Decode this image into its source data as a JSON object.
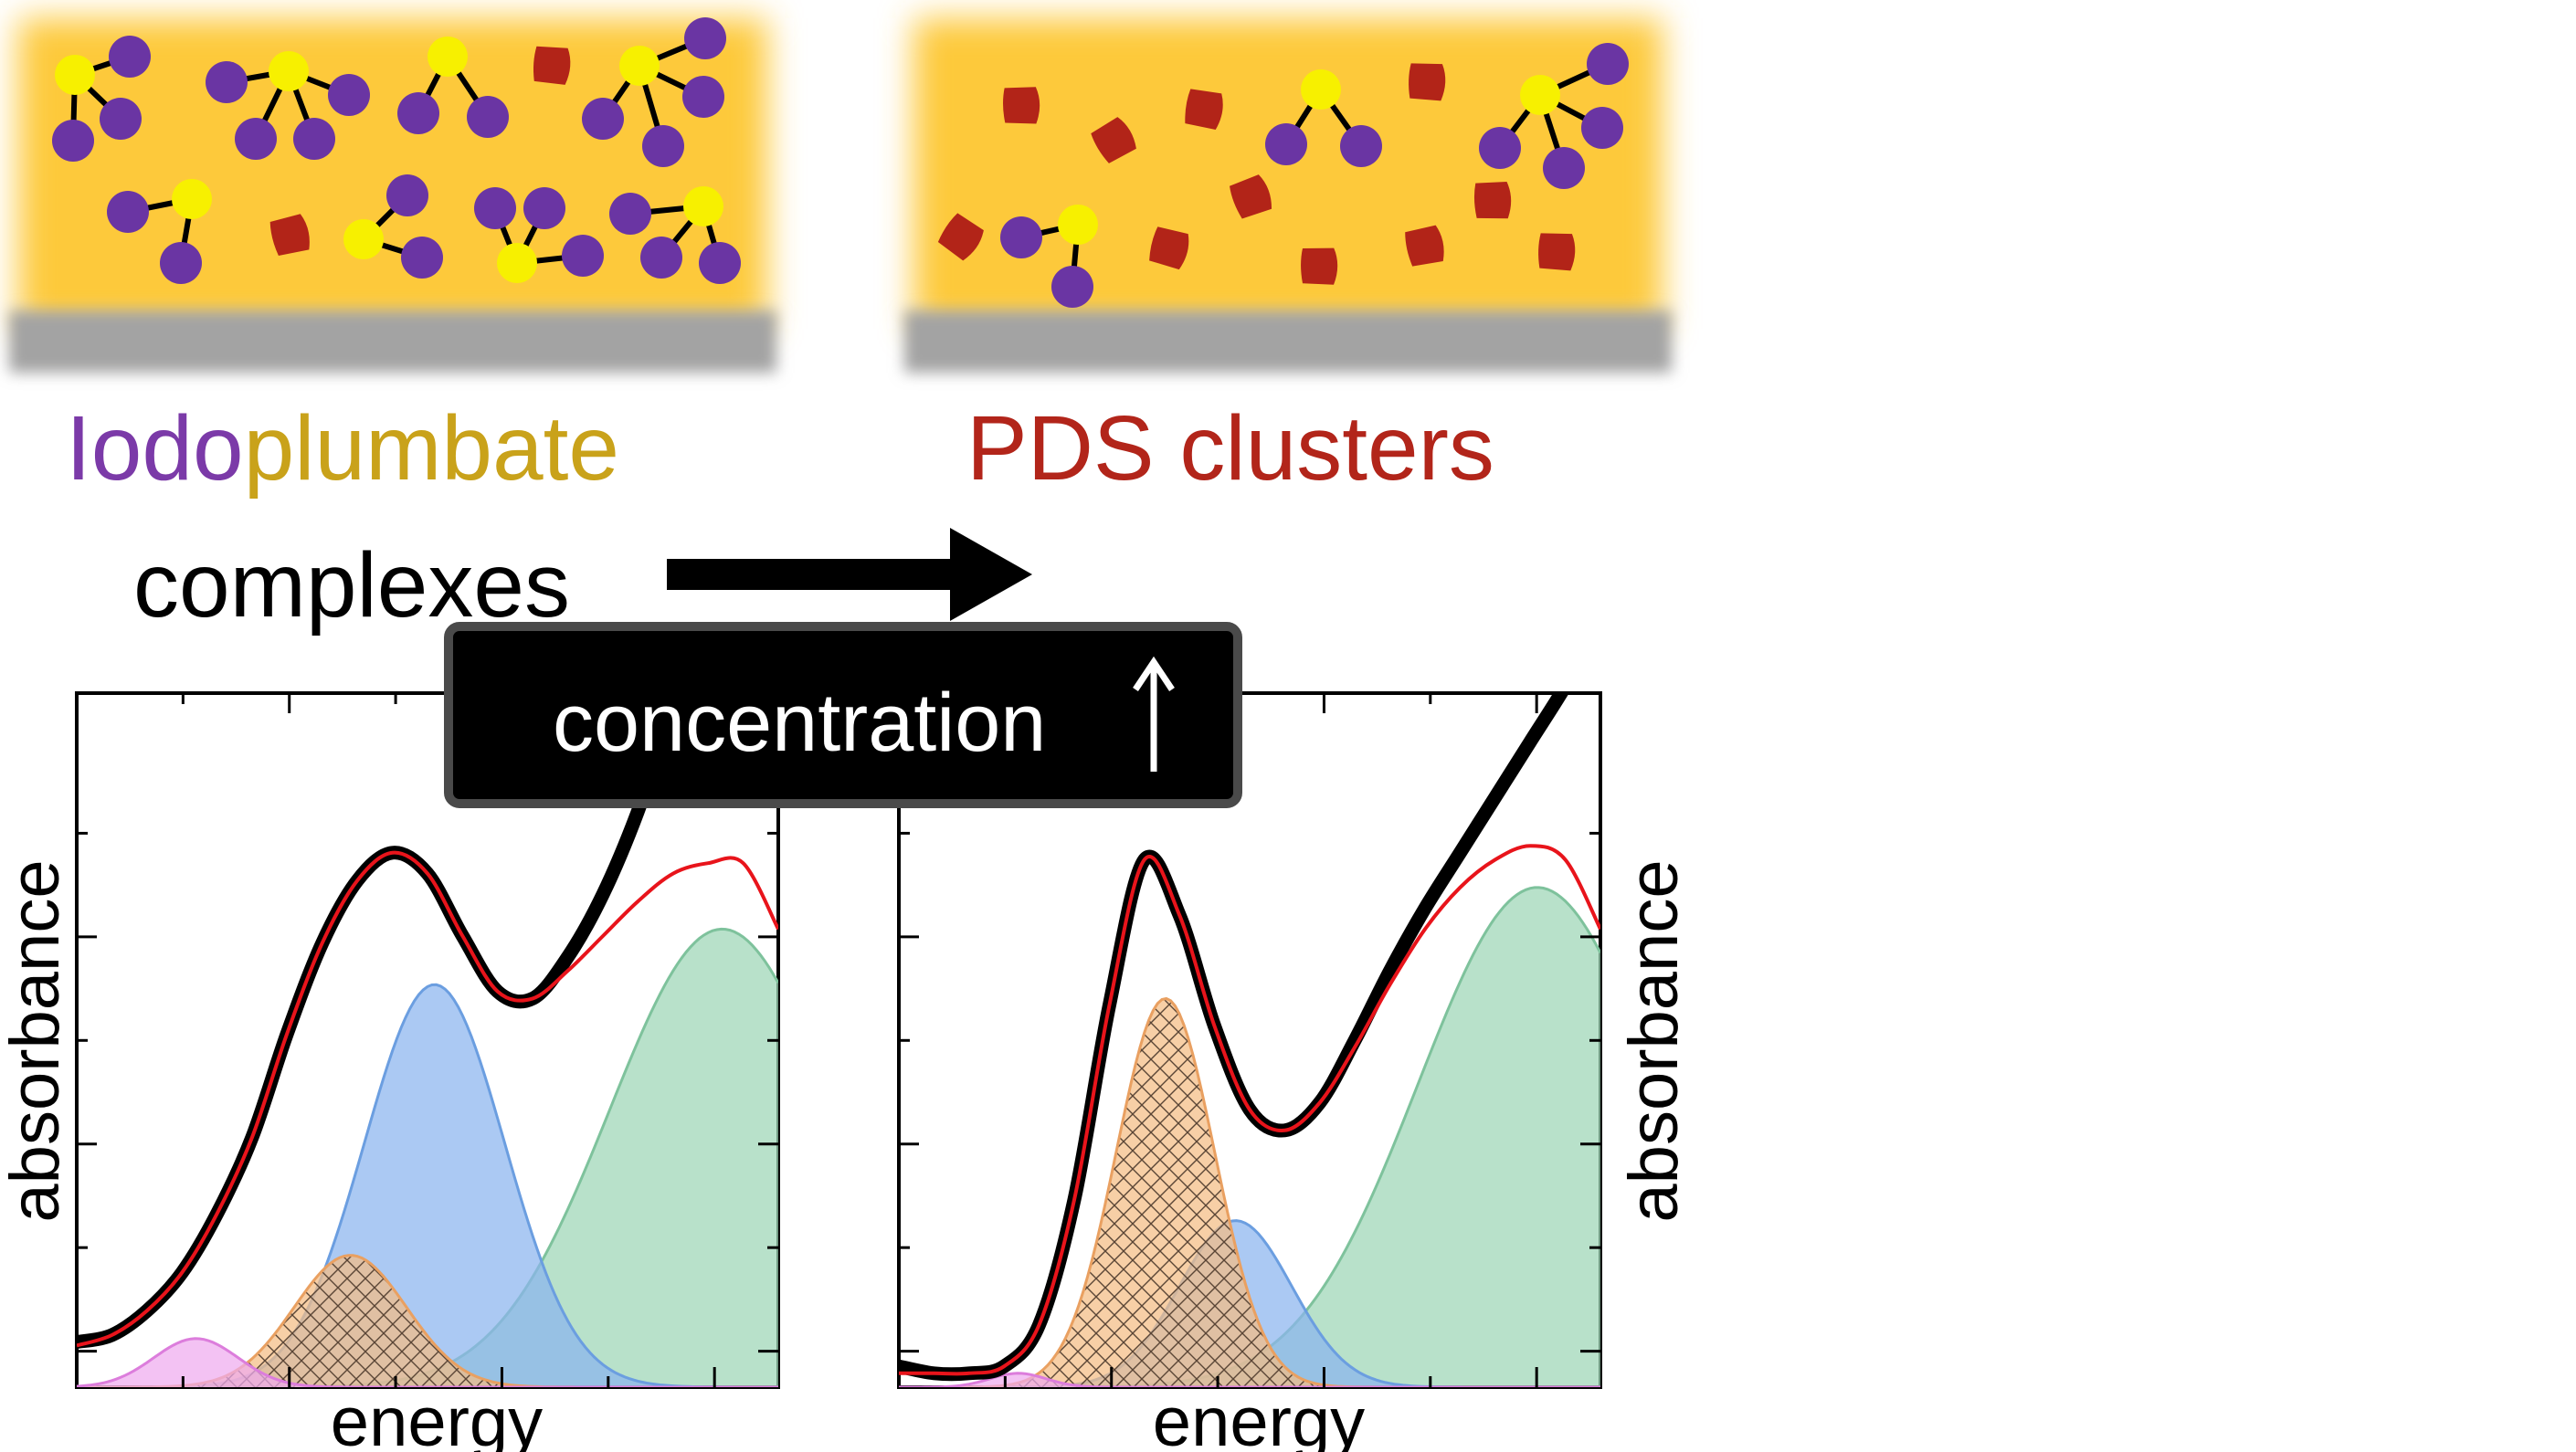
{
  "texts": {
    "left_title_part1": "Iodo",
    "left_title_part2": "plumbate",
    "left_title_part3": "complexes",
    "right_title": "PDS clusters",
    "concentration": "concentration",
    "concentration_arrow": "↑",
    "left_xlabel": "energy",
    "right_xlabel": "energy",
    "left_ylabel": "absorbance",
    "right_ylabel": "absorbance"
  },
  "colors": {
    "film": "#fdc93a",
    "substrate": "#a3a3a3",
    "iodine": "#6a35a3",
    "lead": "#f7f000",
    "cluster": "#b22418",
    "iodo_text": "#7b3aa8",
    "plumbate_text": "#c9a21a",
    "pds_text": "#b2251a",
    "measured": "#000000",
    "fit": "#e8141b",
    "blue_fill": "#8ab4ee",
    "blue_line": "#6b9ee0",
    "green_fill": "#9dd5b5",
    "green_line": "#7ec29c",
    "orange_fill": "#f4bd84",
    "orange_line": "#e9a061",
    "pink_fill": "#eeaaee",
    "pink_line": "#dc7ddc"
  },
  "icons": {
    "arrow": "right-arrow-icon",
    "molecule": "iodoplumbate-molecule-icon",
    "cluster": "pds-cluster-icon"
  },
  "chart_data": [
    {
      "type": "area",
      "xlabel": "energy",
      "ylabel": "absorbance",
      "xlim": [
        0,
        1
      ],
      "ylim": [
        0,
        1
      ],
      "series": [
        {
          "type": "gaussian",
          "color": "pink",
          "hatched": false,
          "amplitude": 0.07,
          "center": 0.17,
          "width": 0.06
        },
        {
          "type": "gaussian",
          "color": "orange",
          "hatched": true,
          "amplitude": 0.19,
          "center": 0.39,
          "width": 0.08
        },
        {
          "type": "gaussian",
          "color": "blue",
          "hatched": false,
          "amplitude": 0.58,
          "center": 0.51,
          "width": 0.1
        },
        {
          "type": "gaussian",
          "color": "green",
          "hatched": false,
          "amplitude": 0.66,
          "center": 0.92,
          "width": 0.16
        },
        {
          "type": "line",
          "color": "fit",
          "x": [
            0,
            0.05,
            0.1,
            0.15,
            0.2,
            0.25,
            0.3,
            0.35,
            0.4,
            0.45,
            0.5,
            0.55,
            0.6,
            0.65,
            0.7,
            0.75,
            0.8,
            0.85,
            0.9,
            0.95,
            1.0
          ],
          "y": [
            0.06,
            0.075,
            0.11,
            0.165,
            0.25,
            0.36,
            0.51,
            0.64,
            0.73,
            0.77,
            0.74,
            0.65,
            0.57,
            0.56,
            0.6,
            0.65,
            0.7,
            0.74,
            0.755,
            0.755,
            0.66
          ]
        },
        {
          "type": "line",
          "color": "measured",
          "x": [
            0,
            0.05,
            0.1,
            0.15,
            0.2,
            0.25,
            0.3,
            0.35,
            0.4,
            0.45,
            0.5,
            0.55,
            0.6,
            0.65,
            0.7,
            0.75,
            0.8,
            0.85,
            0.9
          ],
          "y": [
            0.065,
            0.075,
            0.11,
            0.165,
            0.25,
            0.36,
            0.51,
            0.64,
            0.73,
            0.77,
            0.74,
            0.65,
            0.57,
            0.56,
            0.62,
            0.71,
            0.83,
            0.98,
            1.1
          ]
        }
      ]
    },
    {
      "type": "area",
      "xlabel": "energy",
      "ylabel": "absorbance",
      "xlim": [
        0,
        1
      ],
      "ylim": [
        0,
        1
      ],
      "series": [
        {
          "type": "gaussian",
          "color": "pink",
          "hatched": false,
          "amplitude": 0.02,
          "center": 0.17,
          "width": 0.04
        },
        {
          "type": "gaussian",
          "color": "orange",
          "hatched": true,
          "amplitude": 0.56,
          "center": 0.38,
          "width": 0.07
        },
        {
          "type": "gaussian",
          "color": "blue",
          "hatched": false,
          "amplitude": 0.24,
          "center": 0.48,
          "width": 0.08
        },
        {
          "type": "gaussian",
          "color": "green",
          "hatched": false,
          "amplitude": 0.72,
          "center": 0.91,
          "width": 0.17
        },
        {
          "type": "line",
          "color": "fit",
          "x": [
            0,
            0.05,
            0.1,
            0.15,
            0.2,
            0.25,
            0.3,
            0.35,
            0.4,
            0.45,
            0.5,
            0.55,
            0.6,
            0.65,
            0.7,
            0.75,
            0.8,
            0.85,
            0.9,
            0.95,
            1.0
          ],
          "y": [
            0.02,
            0.02,
            0.02,
            0.03,
            0.09,
            0.27,
            0.55,
            0.76,
            0.68,
            0.52,
            0.4,
            0.37,
            0.41,
            0.49,
            0.58,
            0.66,
            0.72,
            0.76,
            0.78,
            0.76,
            0.66
          ]
        },
        {
          "type": "line",
          "color": "measured",
          "x": [
            0,
            0.05,
            0.1,
            0.15,
            0.2,
            0.25,
            0.3,
            0.35,
            0.4,
            0.45,
            0.5,
            0.55,
            0.6,
            0.65,
            0.7,
            0.75,
            0.8,
            0.85,
            0.9,
            0.95,
            1.0
          ],
          "y": [
            0.03,
            0.02,
            0.02,
            0.03,
            0.09,
            0.27,
            0.55,
            0.76,
            0.68,
            0.52,
            0.4,
            0.37,
            0.41,
            0.5,
            0.6,
            0.69,
            0.77,
            0.85,
            0.93,
            1.01,
            1.1
          ]
        }
      ]
    }
  ]
}
